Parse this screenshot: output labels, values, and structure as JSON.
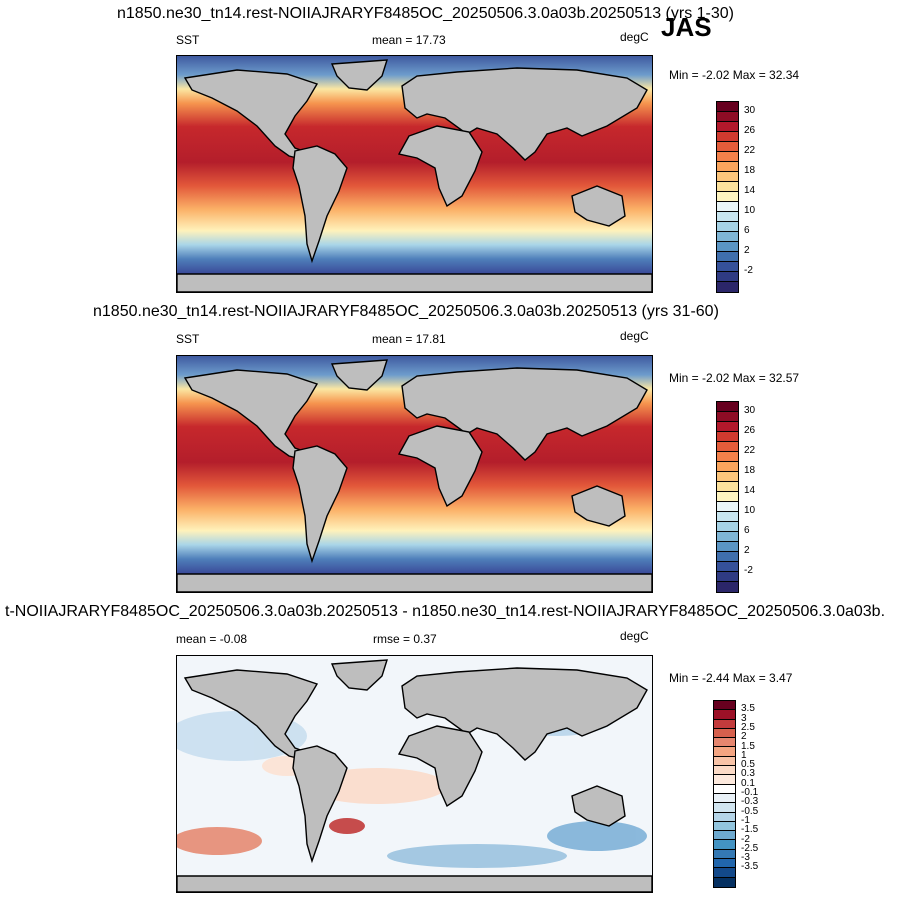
{
  "season": "JAS",
  "panels": [
    {
      "title": "n1850.ne30_tn14.rest-NOIIAJRARYF8485OC_20250506.3.0a03b.20250513 (yrs 1-30)",
      "left_label": "SST",
      "center_label": "mean =  17.73",
      "units": "degC",
      "minmax": "Min =  -2.02 Max =  32.34",
      "type": "abs"
    },
    {
      "title": "n1850.ne30_tn14.rest-NOIIAJRARYF8485OC_20250506.3.0a03b.20250513 (yrs 31-60)",
      "left_label": "SST",
      "center_label": "mean =  17.81",
      "units": "degC",
      "minmax": "Min =  -2.02 Max =  32.57",
      "type": "abs"
    },
    {
      "title": "t-NOIIAJRARYF8485OC_20250506.3.0a03b.20250513 - n1850.ne30_tn14.rest-NOIIAJRARYF8485OC_20250506.3.0a03b.",
      "left_label": "mean =  -0.08",
      "center_label": "rmse =   0.37",
      "units": "degC",
      "minmax": "Min =  -2.44 Max =   3.47",
      "type": "diff"
    }
  ],
  "colorbar_abs": {
    "colors": [
      "#67001f",
      "#8e0c25",
      "#b2182b",
      "#d03a2f",
      "#e45c3a",
      "#f4814a",
      "#fba55d",
      "#fdc67c",
      "#fde29c",
      "#fff5c0",
      "#eaf6f8",
      "#c8e6f0",
      "#a6d3e6",
      "#7fb6d6",
      "#5a95c4",
      "#3f6fad",
      "#35519a",
      "#2f3b83",
      "#2b2669"
    ],
    "ticks": [
      "30",
      "26",
      "22",
      "18",
      "14",
      "10",
      "6",
      "2",
      "-2"
    ]
  },
  "colorbar_diff": {
    "colors": [
      "#67001f",
      "#9c1127",
      "#c33b3c",
      "#d6604d",
      "#e6866f",
      "#f4a582",
      "#f8c3a7",
      "#fbdac6",
      "#fde9dd",
      "#ffffff",
      "#e9f1f7",
      "#d1e5f0",
      "#b5d5e8",
      "#92c5de",
      "#6eaad0",
      "#4393c3",
      "#3479b4",
      "#2166ac",
      "#13498a",
      "#053061"
    ],
    "ticks": [
      "3.5",
      "3",
      "2.5",
      "2",
      "1.5",
      "1",
      "0.5",
      "0.3",
      "0.1",
      "-0.1",
      "-0.3",
      "-0.5",
      "-1",
      "-1.5",
      "-2",
      "-2.5",
      "-3",
      "-3.5"
    ]
  }
}
